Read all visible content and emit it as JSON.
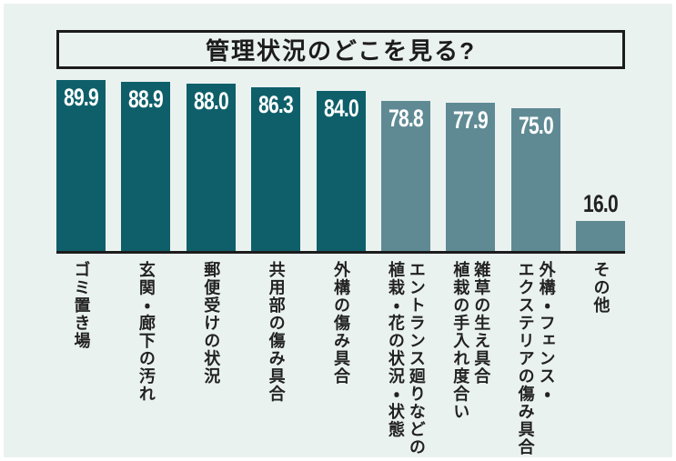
{
  "title": "管理状況のどこを見る?",
  "colors": {
    "background": "#eaf2f0",
    "frame": "#ffffff",
    "bar_dark": "#0e5f6a",
    "bar_light": "#5f8a94",
    "axis": "#1c1c1c",
    "value_text_inside": "#ffffff",
    "value_text_outside": "#222222",
    "label_text": "#222222"
  },
  "chart_data": {
    "type": "bar",
    "title": "管理状況のどこを見る?",
    "ylim": [
      0,
      100
    ],
    "grid": false,
    "legend": false,
    "value_labels_shown": true,
    "categories": [
      "ゴミ置き場",
      "玄関・廊下の汚れ",
      "郵便受けの状況",
      "共用部の傷み具合",
      "外構の傷み具合",
      "エントランス廻りなどの植栽・花の状況・状態",
      "雑草の生え具合 植栽の手入れ度合い",
      "外構・フェンス・エクステリアの傷み具合",
      "その他"
    ],
    "values": [
      89.9,
      88.9,
      88.0,
      86.3,
      84.0,
      78.8,
      77.9,
      75.0,
      16.0
    ],
    "bars": [
      {
        "label": "ゴミ置き場",
        "value": "89.9",
        "tone": "dark",
        "value_position": "inside"
      },
      {
        "label": "玄関・廊下の汚れ",
        "value": "88.9",
        "tone": "dark",
        "value_position": "inside"
      },
      {
        "label": "郵便受けの状況",
        "value": "88.0",
        "tone": "dark",
        "value_position": "inside"
      },
      {
        "label": "共用部の傷み具合",
        "value": "86.3",
        "tone": "dark",
        "value_position": "inside"
      },
      {
        "label": "外構の傷み具合",
        "value": "84.0",
        "tone": "dark",
        "value_position": "inside"
      },
      {
        "label": "エントランス廻りなどの\n植栽・花の状況・状態",
        "value": "78.8",
        "tone": "light",
        "value_position": "inside"
      },
      {
        "label": "雑草の生え具合\n植栽の手入れ度合い",
        "value": "77.9",
        "tone": "light",
        "value_position": "inside"
      },
      {
        "label": "外構・フェンス・\nエクステリアの傷み具合",
        "value": "75.0",
        "tone": "light",
        "value_position": "inside"
      },
      {
        "label": "その他",
        "value": "16.0",
        "tone": "light",
        "value_position": "above"
      }
    ]
  }
}
